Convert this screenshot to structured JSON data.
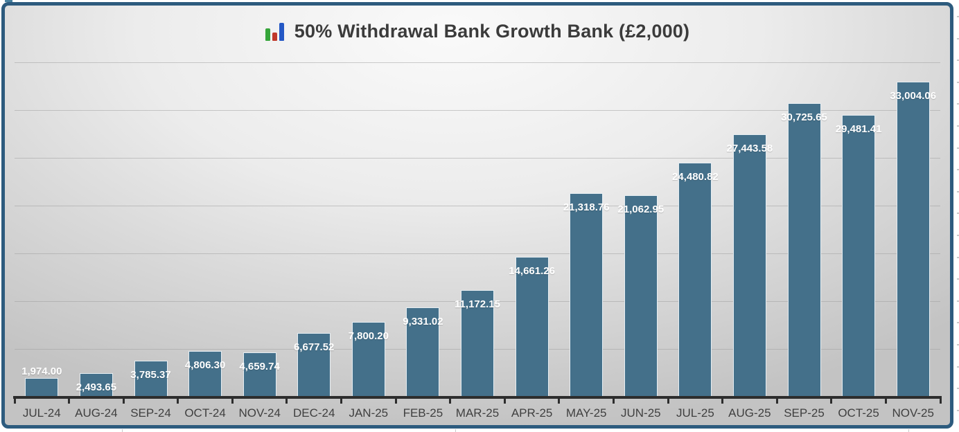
{
  "chart": {
    "colors": {
      "frame_border": "#2d5b7e",
      "background_center": "#fafafa",
      "background_edge": "#c3c3c3",
      "bar_fill": "#44708a",
      "bar_outline": "#e6eef3",
      "data_label": "#ffffff",
      "axis_line": "#2d2d2d",
      "gridline": "#9b9b9b",
      "category_label": "#3f3f3f",
      "title_text": "#3b3b3b",
      "icon_green": "#36a53a",
      "icon_red": "#c0392b",
      "icon_blue": "#2458c5"
    },
    "title_icon": "bar-chart-emoji-icon"
  },
  "chart_data": {
    "type": "bar",
    "title": "50% Withdrawal Bank Growth Bank (£2,000)",
    "categories": [
      "JUL-24",
      "AUG-24",
      "SEP-24",
      "OCT-24",
      "NOV-24",
      "DEC-24",
      "JAN-25",
      "FEB-25",
      "MAR-25",
      "APR-25",
      "MAY-25",
      "JUN-25",
      "JUL-25",
      "AUG-25",
      "SEP-25",
      "OCT-25",
      "NOV-25"
    ],
    "values": [
      1974.0,
      2493.65,
      3785.37,
      4806.3,
      4659.74,
      6677.52,
      7800.2,
      9331.02,
      11172.15,
      14661.26,
      21318.76,
      21062.95,
      24480.82,
      27443.58,
      30725.65,
      29481.41,
      33004.06
    ],
    "data_labels": [
      "1,974.00",
      "2,493.65",
      "3,785.37",
      "4,806.30",
      "4,659.74",
      "6,677.52",
      "7,800.20",
      "9,331.02",
      "11,172.15",
      "14,661.26",
      "21,318.76",
      "21,062.95",
      "24,480.82",
      "27,443.58",
      "30,725.65",
      "29,481.41",
      "33,004.06"
    ],
    "xlabel": "",
    "ylabel": "",
    "ylim": [
      0,
      35000
    ],
    "grid": true,
    "gridline_interval": 5000,
    "y_axis_labels_visible": false,
    "legend": false,
    "data_label_position": "inside-end"
  }
}
